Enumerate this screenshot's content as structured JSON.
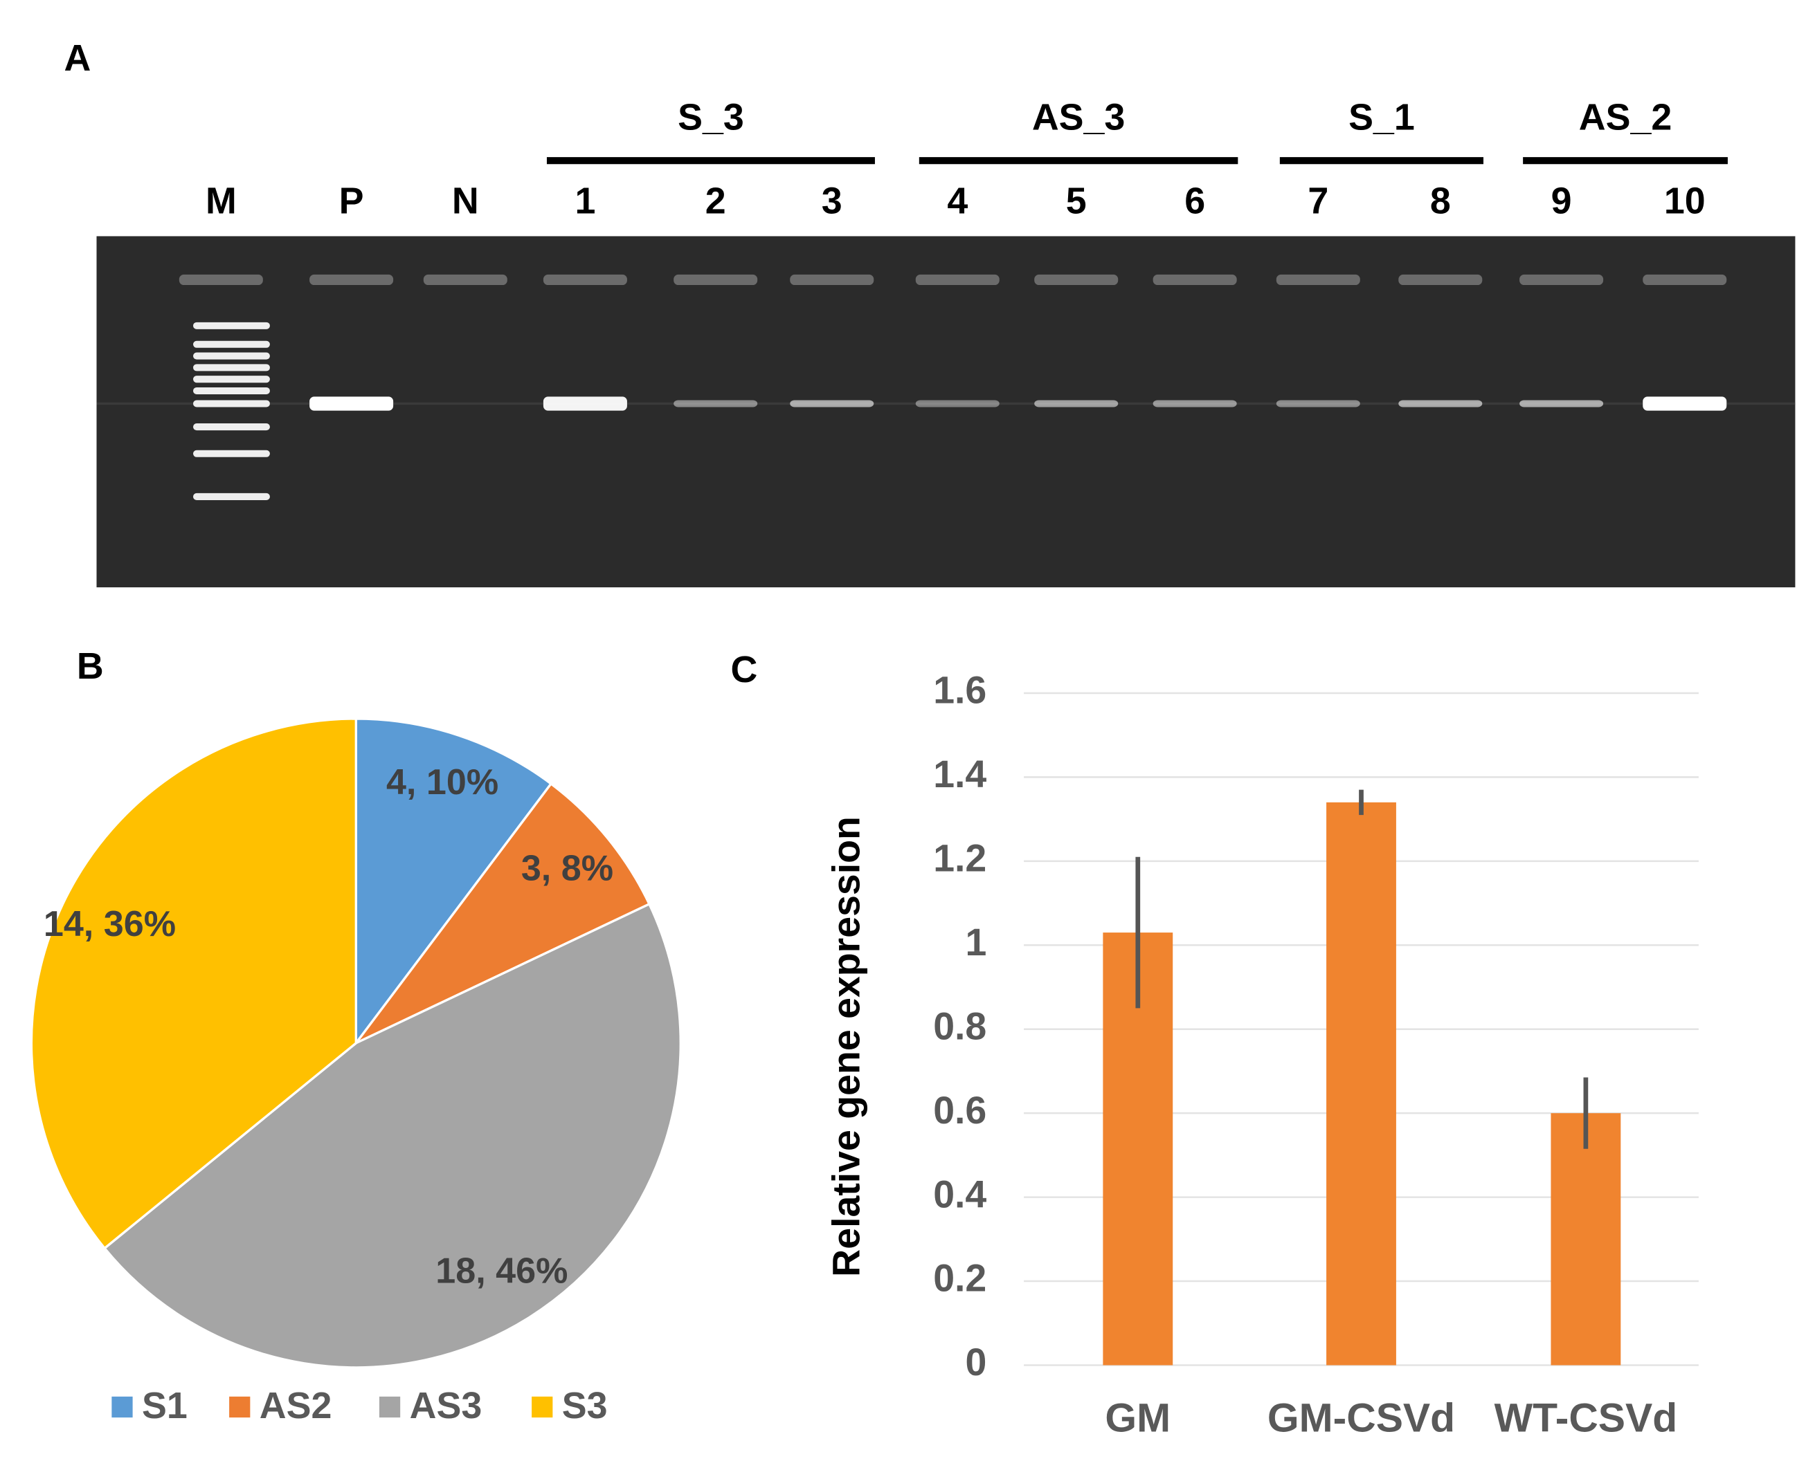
{
  "gel": {
    "panel": "A",
    "groups": [
      {
        "label": "S_3",
        "from": 3,
        "to": 5
      },
      {
        "label": "AS_3",
        "from": 6,
        "to": 8
      },
      {
        "label": "S_1",
        "from": 9,
        "to": 10
      },
      {
        "label": "AS_2",
        "from": 11,
        "to": 12
      }
    ],
    "lanes": [
      "M",
      "P",
      "N",
      "1",
      "2",
      "3",
      "4",
      "5",
      "6",
      "7",
      "8",
      "9",
      "10"
    ]
  },
  "chart_data": [
    {
      "type": "pie",
      "panel": "B",
      "categories": [
        "S1",
        "AS2",
        "AS3",
        "S3"
      ],
      "values": [
        4,
        3,
        18,
        14
      ],
      "value_labels": [
        "4, 10%",
        "3, 8%",
        "18, 46%",
        "14, 36%"
      ],
      "colors": [
        "#5b9bd5",
        "#ed7d31",
        "#a5a5a5",
        "#ffc000"
      ],
      "legend": "bottom"
    },
    {
      "type": "bar",
      "panel": "C",
      "ylabel": "Relative gene expression",
      "categories": [
        "GM",
        "GM-CSVd",
        "WT-CSVd"
      ],
      "values": [
        1.03,
        1.34,
        0.6
      ],
      "errors": [
        0.18,
        0.03,
        0.085
      ],
      "color": "#f0842f",
      "ylim": [
        0,
        1.6
      ],
      "yticks": [
        0,
        0.2,
        0.4,
        0.6,
        0.8,
        1,
        1.2,
        1.4,
        1.6
      ],
      "grid": true
    }
  ]
}
